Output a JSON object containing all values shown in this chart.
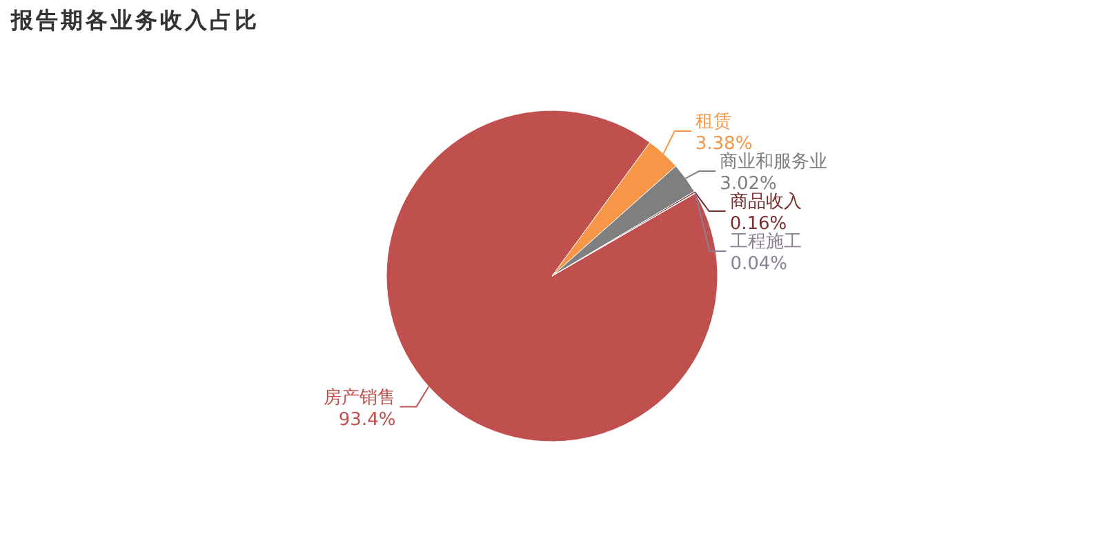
{
  "chart_data": {
    "type": "pie",
    "title": "报告期各业务收入占比",
    "categories": [
      "房产销售",
      "租赁",
      "商业和服务业",
      "商品收入",
      "工程施工"
    ],
    "values": [
      93.4,
      3.38,
      3.02,
      0.16,
      0.04
    ],
    "colors": [
      "#c0504d",
      "#f79646",
      "#7f7f7f",
      "#7b2c2c",
      "#8a7e93"
    ],
    "value_labels": [
      "93.4%",
      "3.38%",
      "3.02%",
      "0.16%",
      "0.04%"
    ]
  }
}
